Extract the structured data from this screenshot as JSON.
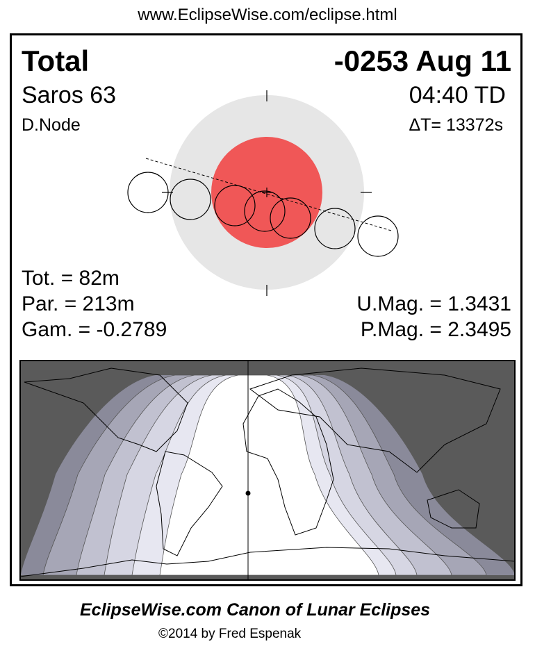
{
  "url": "www.EclipseWise.com/eclipse.html",
  "header": {
    "type": "Total",
    "date": "-0253 Aug 11",
    "saros": "Saros  63",
    "time": "04:40 TD",
    "node": "D.Node",
    "delta_t": "ΔT=  13372s"
  },
  "stats": {
    "tot": "Tot. =  82m",
    "par": "Par. = 213m",
    "gam": "Gam. = -0.2789",
    "umag": "U.Mag. = 1.3431",
    "pmag": "P.Mag. = 2.3495"
  },
  "footer": {
    "title": "EclipseWise.com Canon of Lunar Eclipses",
    "copyright": "©2014 by Fred Espenak"
  },
  "colors": {
    "penumbra": "#e6e6e6",
    "umbra": "#f05757",
    "night": "#5a5a5a",
    "bands": [
      "#8a8a9a",
      "#a6a6b6",
      "#c1c1d0",
      "#d6d6e3",
      "#e7e7f1"
    ]
  }
}
